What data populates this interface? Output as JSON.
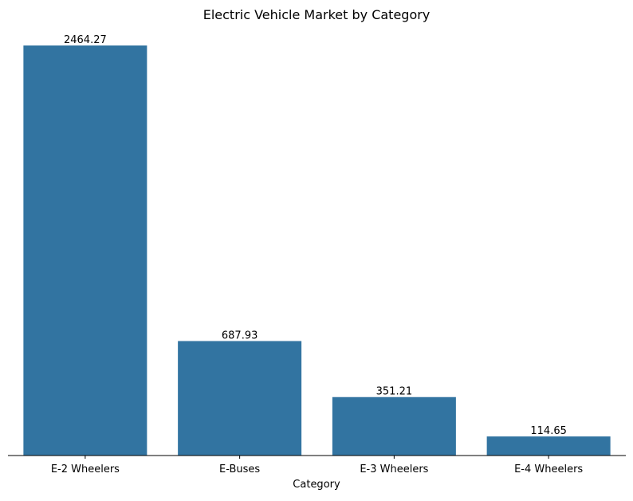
{
  "chart_data": {
    "type": "bar",
    "title": "Electric Vehicle Market by Category",
    "xlabel": "Category",
    "ylabel": "",
    "categories": [
      "E-2 Wheelers",
      "E-Buses",
      "E-3 Wheelers",
      "E-4 Wheelers"
    ],
    "values": [
      2464.27,
      687.93,
      351.21,
      114.65
    ],
    "value_labels": [
      "2464.27",
      "687.93",
      "351.21",
      "114.65"
    ],
    "ylim": [
      0,
      2464.27
    ],
    "bar_color": "#3274a1",
    "axis_color": "#000000",
    "grid": false,
    "legend": "none"
  }
}
